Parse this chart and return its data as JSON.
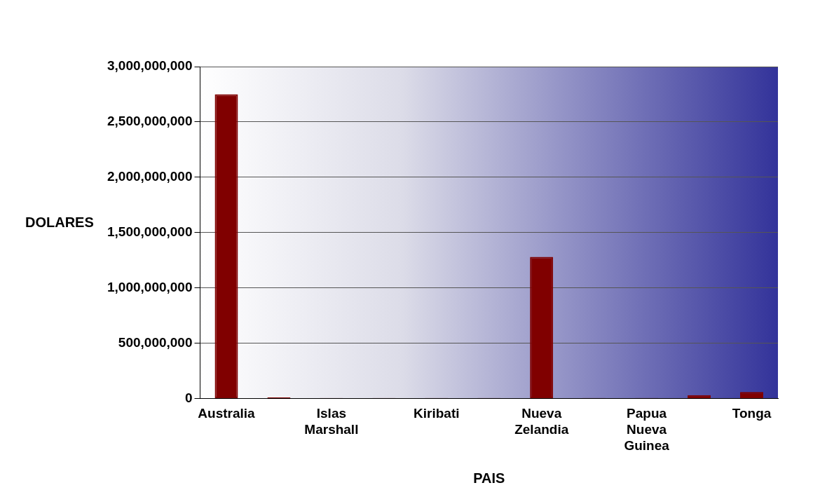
{
  "chart_data": {
    "type": "bar",
    "xlabel": "PAIS",
    "ylabel": "DOLARES",
    "categories": [
      "Australia",
      null,
      "Islas Marshall",
      null,
      "Kiribati",
      null,
      "Nueva Zelandia",
      null,
      "Papua Nueva Guinea",
      null,
      "Tonga"
    ],
    "values": [
      2750000000,
      10000000,
      5000000,
      5000000,
      5000000,
      5000000,
      1280000000,
      5000000,
      5000000,
      30000000,
      60000000
    ],
    "color": "#800000",
    "ylim": [
      0,
      3000000000
    ],
    "yticks": [
      {
        "value": 0,
        "label": "0"
      },
      {
        "value": 500000000,
        "label": "500,000,000"
      },
      {
        "value": 1000000000,
        "label": "1,000,000,000"
      },
      {
        "value": 1500000000,
        "label": "1,500,000,000"
      },
      {
        "value": 2000000000,
        "label": "2,000,000,000"
      },
      {
        "value": 2500000000,
        "label": "2,500,000,000"
      },
      {
        "value": 3000000000,
        "label": "3,000,000,000"
      }
    ],
    "grid": "y",
    "legend": false
  }
}
